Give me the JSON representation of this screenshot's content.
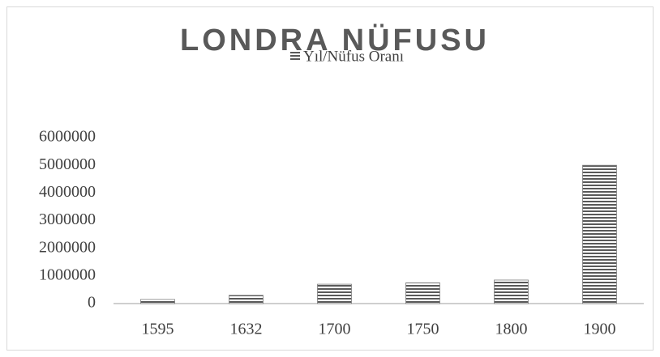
{
  "chart_data": {
    "type": "bar",
    "title": "LONDRA NÜFUSU",
    "legend": "Yıl/Nüfus Oranı",
    "categories": [
      "1595",
      "1632",
      "1700",
      "1750",
      "1800",
      "1900"
    ],
    "values": [
      150000,
      300000,
      700000,
      750000,
      850000,
      5000000
    ],
    "color": "#595959",
    "ylim": [
      0,
      6000000
    ],
    "yticks": [
      0,
      1000000,
      2000000,
      3000000,
      4000000,
      5000000,
      6000000
    ],
    "grid": false
  }
}
